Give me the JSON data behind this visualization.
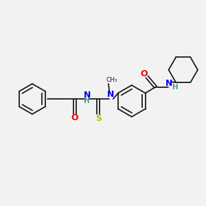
{
  "bg_color": "#f2f2f2",
  "line_color": "#1a1a1a",
  "atom_colors": {
    "N": "#0000ee",
    "O": "#ee0000",
    "S": "#bbbb00",
    "H": "#4a9a9a",
    "C": "#1a1a1a"
  },
  "font_size_atom": 9,
  "font_size_small": 7.5,
  "lw": 1.3
}
